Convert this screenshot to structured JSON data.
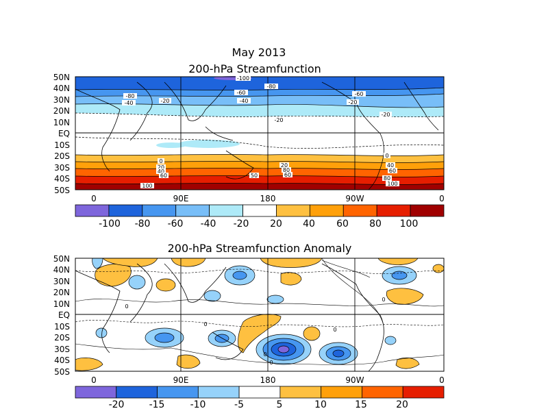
{
  "header": {
    "title": "May 2013",
    "subtitle": "200-hPa Streamfunction"
  },
  "panel_top": {
    "lat_labels": [
      "50N",
      "40N",
      "30N",
      "20N",
      "10N",
      "EQ",
      "10S",
      "20S",
      "30S",
      "40S",
      "50S"
    ],
    "lon_labels": [
      "0",
      "90E",
      "180",
      "90W",
      "0"
    ],
    "contour_labels": [
      "-100",
      "-80",
      "-60",
      "-40",
      "-20",
      "-20",
      "-80",
      "-60",
      "-40",
      "-20",
      "-20",
      "0",
      "0",
      "20",
      "40",
      "60",
      "80",
      "100",
      "50",
      "60",
      "20",
      "40",
      "60",
      "80",
      "100"
    ]
  },
  "colorbar_top": {
    "labels": [
      "-100",
      "-80",
      "-60",
      "-40",
      "-20",
      "20",
      "40",
      "60",
      "80",
      "100"
    ],
    "colors": [
      "#7e66dc",
      "#1e64dc",
      "#4696f0",
      "#78bef8",
      "#aeeaf8",
      "#ffffff",
      "#fec040",
      "#ffa00a",
      "#ff6400",
      "#e61e00",
      "#a00000"
    ]
  },
  "panel_bottom": {
    "title": "200-hPa Streamfunction Anomaly",
    "lat_labels": [
      "50N",
      "40N",
      "30N",
      "20N",
      "10N",
      "EQ",
      "10S",
      "20S",
      "30S",
      "40S",
      "50S"
    ],
    "lon_labels": [
      "0",
      "90E",
      "180",
      "90W",
      "0"
    ],
    "contour_labels": [
      "0",
      "0",
      "0",
      "0",
      "0",
      "0"
    ]
  },
  "colorbar_bottom": {
    "labels": [
      "-20",
      "-15",
      "-10",
      "-5",
      "5",
      "10",
      "15",
      "20"
    ],
    "colors": [
      "#7e66dc",
      "#1e64dc",
      "#4696f0",
      "#96d2fa",
      "#ffffff",
      "#fec040",
      "#ffa00a",
      "#ff6400",
      "#e61e00"
    ]
  }
}
